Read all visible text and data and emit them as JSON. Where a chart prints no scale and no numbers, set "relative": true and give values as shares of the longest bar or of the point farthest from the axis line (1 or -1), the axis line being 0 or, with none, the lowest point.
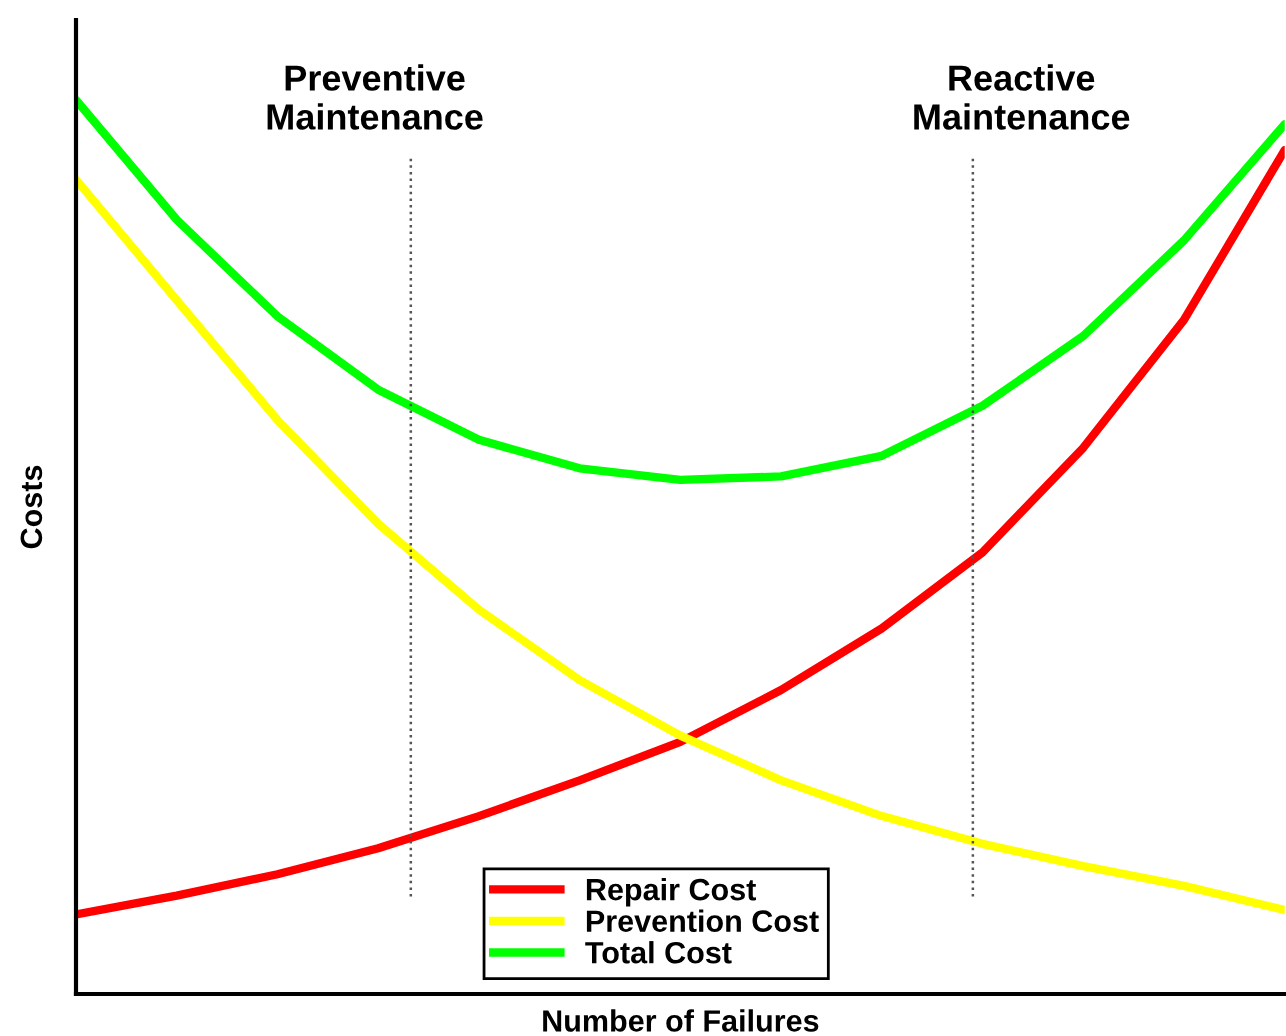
{
  "chart_data": {
    "type": "line",
    "relative": true,
    "xlabel": "Number of Failures",
    "ylabel": "Costs",
    "categories": [
      null,
      null,
      null,
      null,
      null,
      null,
      null,
      null,
      null,
      null,
      null,
      null,
      null
    ],
    "series": [
      {
        "name": "Repair Cost",
        "color": "#ff0000",
        "values": [
          0.089,
          0.11,
          0.134,
          0.163,
          0.199,
          0.239,
          0.282,
          0.34,
          0.409,
          0.494,
          0.611,
          0.754,
          0.944
        ]
      },
      {
        "name": "Prevention Cost",
        "color": "#ffff00",
        "values": [
          0.911,
          0.776,
          0.642,
          0.526,
          0.43,
          0.351,
          0.289,
          0.239,
          0.199,
          0.168,
          0.143,
          0.121,
          0.094
        ]
      },
      {
        "name": "Total Cost",
        "color": "#00ff00",
        "values": [
          1.0,
          0.866,
          0.758,
          0.676,
          0.62,
          0.588,
          0.575,
          0.579,
          0.602,
          0.658,
          0.736,
          0.843,
          0.973
        ]
      }
    ],
    "annotations": [
      "Preventive\nMaintenance",
      "Reactive\nMaintenance"
    ],
    "legend": "bottom",
    "grid": false,
    "marker": "none",
    "line_style": "solid"
  }
}
